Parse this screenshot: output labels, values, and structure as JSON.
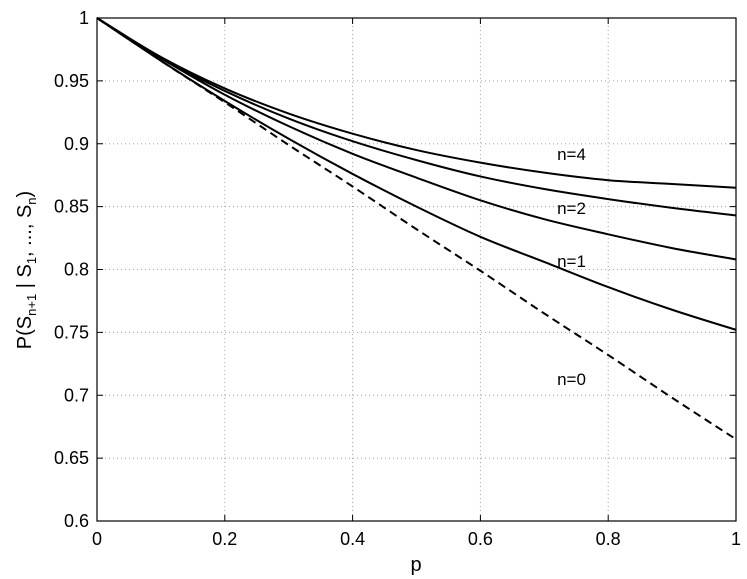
{
  "chart_data": {
    "type": "line",
    "title": "",
    "xlabel": "p",
    "ylabel": {
      "prefix": "P(S",
      "sub1": "n+1",
      "mid": " | S",
      "sub2": "1",
      "mid2": ", ..., S",
      "sub3": "n",
      "suffix": ")"
    },
    "xlim": [
      0,
      1
    ],
    "ylim": [
      0.6,
      1
    ],
    "xticks": [
      0,
      0.2,
      0.4,
      0.6,
      0.8,
      1
    ],
    "xtick_labels": [
      "0",
      "0.2",
      "0.4",
      "0.6",
      "0.8",
      "1"
    ],
    "yticks": [
      0.6,
      0.65,
      0.7,
      0.75,
      0.8,
      0.85,
      0.9,
      0.95,
      1
    ],
    "ytick_labels": [
      "0.6",
      "0.65",
      "0.7",
      "0.75",
      "0.8",
      "0.85",
      "0.9",
      "0.95",
      "1"
    ],
    "grid": true,
    "x": [
      0,
      0.1,
      0.2,
      0.3,
      0.4,
      0.5,
      0.6,
      0.7,
      0.8,
      0.9,
      1.0
    ],
    "series": [
      {
        "name": "n=0",
        "style": "dashed",
        "values": [
          1.0,
          0.966,
          0.933,
          0.899,
          0.866,
          0.832,
          0.799,
          0.765,
          0.732,
          0.698,
          0.665
        ]
      },
      {
        "name": "n=1",
        "style": "solid",
        "values": [
          1.0,
          0.966,
          0.934,
          0.904,
          0.876,
          0.85,
          0.826,
          0.806,
          0.786,
          0.768,
          0.752
        ]
      },
      {
        "name": "n=2",
        "style": "solid",
        "values": [
          1.0,
          0.968,
          0.939,
          0.914,
          0.892,
          0.873,
          0.855,
          0.84,
          0.828,
          0.817,
          0.808
        ]
      },
      {
        "name": "",
        "style": "solid",
        "values": [
          1.0,
          0.968,
          0.942,
          0.92,
          0.902,
          0.887,
          0.874,
          0.864,
          0.856,
          0.849,
          0.843
        ]
      },
      {
        "name": "n=4",
        "style": "solid",
        "values": [
          1.0,
          0.969,
          0.944,
          0.924,
          0.908,
          0.895,
          0.885,
          0.877,
          0.871,
          0.868,
          0.865
        ]
      }
    ],
    "annotations": [
      {
        "text": "n=4",
        "x": 0.72,
        "y": 0.887
      },
      {
        "text": "n=2",
        "x": 0.72,
        "y": 0.844
      },
      {
        "text": "n=1",
        "x": 0.72,
        "y": 0.802
      },
      {
        "text": "n=0",
        "x": 0.72,
        "y": 0.708
      }
    ]
  }
}
